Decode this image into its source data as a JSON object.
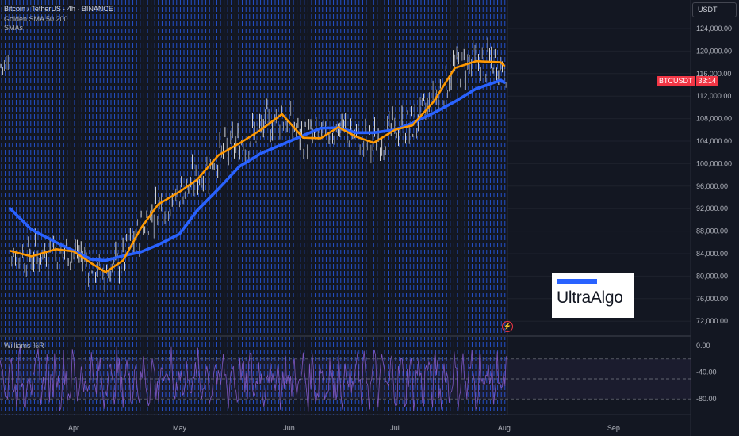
{
  "header": {
    "symbol_line": "Bitcoin / TetherUS · 4h · BINANCE",
    "indicator_1": "Golden SMA 50 200",
    "indicator_2": "SMAs"
  },
  "currency_button": "USDT",
  "price_tag": {
    "symbol": "BTCUSDT",
    "timer": "33:14"
  },
  "logo": {
    "text": "UltraAlgo"
  },
  "flash_icon": "lightning-icon",
  "oscillator": {
    "label": "Williams %R",
    "ticks": [
      "0.00",
      "-40.00",
      "-80.00"
    ],
    "band_upper": -20,
    "band_lower": -80,
    "ylim": [
      -100,
      0
    ]
  },
  "colors": {
    "background": "#131722",
    "grid_vertical": "#2962ff",
    "fast_sma": "#ff9800",
    "slow_sma": "#2962ff",
    "price_line": "#f23645",
    "oscillator": "#7e57c2"
  },
  "chart_data": {
    "type": "line",
    "ylim": [
      69000,
      127000
    ],
    "y_ticks": [
      "124,000.00",
      "120,000.00",
      "116,000.00",
      "112,000.00",
      "108,000.00",
      "104,000.00",
      "100,000.00",
      "96,000.00",
      "92,000.00",
      "88,000.00",
      "84,000.00",
      "80,000.00",
      "76,000.00",
      "72,000.00"
    ],
    "x_ticks": [
      "Apr",
      "May",
      "Jun",
      "Jul",
      "Aug",
      "Sep"
    ],
    "last_price": 114500,
    "series": [
      {
        "name": "SMA 50",
        "x": [
          "Mar 14",
          "Mar 20",
          "Mar 27",
          "Apr 1",
          "Apr 6",
          "Apr 10",
          "Apr 15",
          "Apr 20",
          "Apr 25",
          "May 1",
          "May 6",
          "May 12",
          "May 18",
          "May 24",
          "May 30",
          "Jun 5",
          "Jun 10",
          "Jun 15",
          "Jun 20",
          "Jun 25",
          "Jul 1",
          "Jul 6",
          "Jul 12",
          "Jul 18",
          "Jul 24",
          "Jul 31",
          "Aug 1"
        ],
        "values": [
          84500,
          83500,
          84800,
          84400,
          82300,
          80700,
          82800,
          88500,
          92800,
          95000,
          97200,
          101500,
          103600,
          106000,
          108800,
          104600,
          104500,
          106500,
          104800,
          103700,
          106000,
          106800,
          111000,
          117000,
          118200,
          118000,
          117400
        ]
      },
      {
        "name": "SMA 200",
        "x": [
          "Mar 14",
          "Mar 20",
          "Mar 27",
          "Apr 1",
          "Apr 6",
          "Apr 10",
          "Apr 15",
          "Apr 20",
          "Apr 25",
          "May 1",
          "May 6",
          "May 12",
          "May 18",
          "May 24",
          "May 30",
          "Jun 5",
          "Jun 10",
          "Jun 15",
          "Jun 20",
          "Jun 25",
          "Jul 1",
          "Jul 6",
          "Jul 12",
          "Jul 18",
          "Jul 24",
          "Jul 31",
          "Aug 1"
        ],
        "values": [
          92000,
          88300,
          86000,
          84500,
          83000,
          82800,
          83600,
          84300,
          85600,
          87500,
          91700,
          95500,
          99500,
          101800,
          103400,
          105000,
          106300,
          106400,
          105500,
          105500,
          106000,
          107200,
          109000,
          111000,
          113300,
          114800,
          114400
        ]
      }
    ]
  }
}
